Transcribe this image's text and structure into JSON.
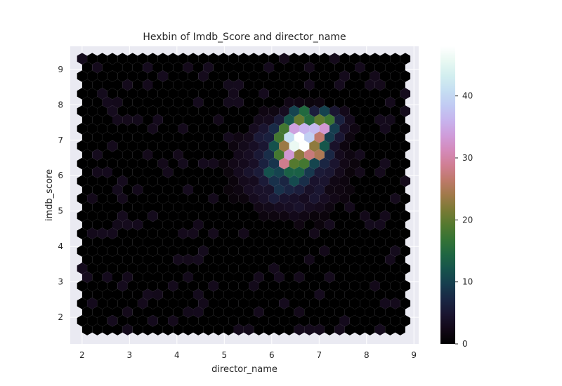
{
  "chart_data": {
    "type": "heatmap",
    "subtype": "hexbin",
    "title": "Hexbin of Imdb_Score and director_name",
    "xlabel": "director_name",
    "ylabel": "imdb_score",
    "xlim": [
      1.75,
      9.1
    ],
    "ylim": [
      1.25,
      9.65
    ],
    "xticks": [
      2,
      3,
      4,
      5,
      6,
      7,
      8,
      9
    ],
    "yticks": [
      2,
      3,
      4,
      5,
      6,
      7,
      8,
      9
    ],
    "grid": true,
    "colormap": "cubehelix",
    "colorbar": {
      "min": 0,
      "max": 48,
      "ticks": [
        0,
        10,
        20,
        30,
        40
      ]
    },
    "hex_extent": {
      "x": [
        2.0,
        8.9
      ],
      "y": [
        1.6,
        9.3
      ]
    },
    "density_peaks": [
      {
        "x": 6.5,
        "y": 7.1,
        "count": 46
      },
      {
        "x": 6.6,
        "y": 6.9,
        "count": 44
      },
      {
        "x": 7.05,
        "y": 7.4,
        "count": 40
      },
      {
        "x": 6.7,
        "y": 6.5,
        "count": 38
      },
      {
        "x": 6.3,
        "y": 6.4,
        "count": 32
      },
      {
        "x": 6.9,
        "y": 6.6,
        "count": 30
      },
      {
        "x": 6.2,
        "y": 6.8,
        "count": 28
      },
      {
        "x": 6.6,
        "y": 7.8,
        "count": 24
      },
      {
        "x": 7.3,
        "y": 7.1,
        "count": 20
      },
      {
        "x": 5.9,
        "y": 6.2,
        "count": 16
      }
    ]
  },
  "colors": {
    "axes_bg": "#eaeaf2",
    "grid": "#ffffff",
    "empty_bin": "#000000"
  }
}
